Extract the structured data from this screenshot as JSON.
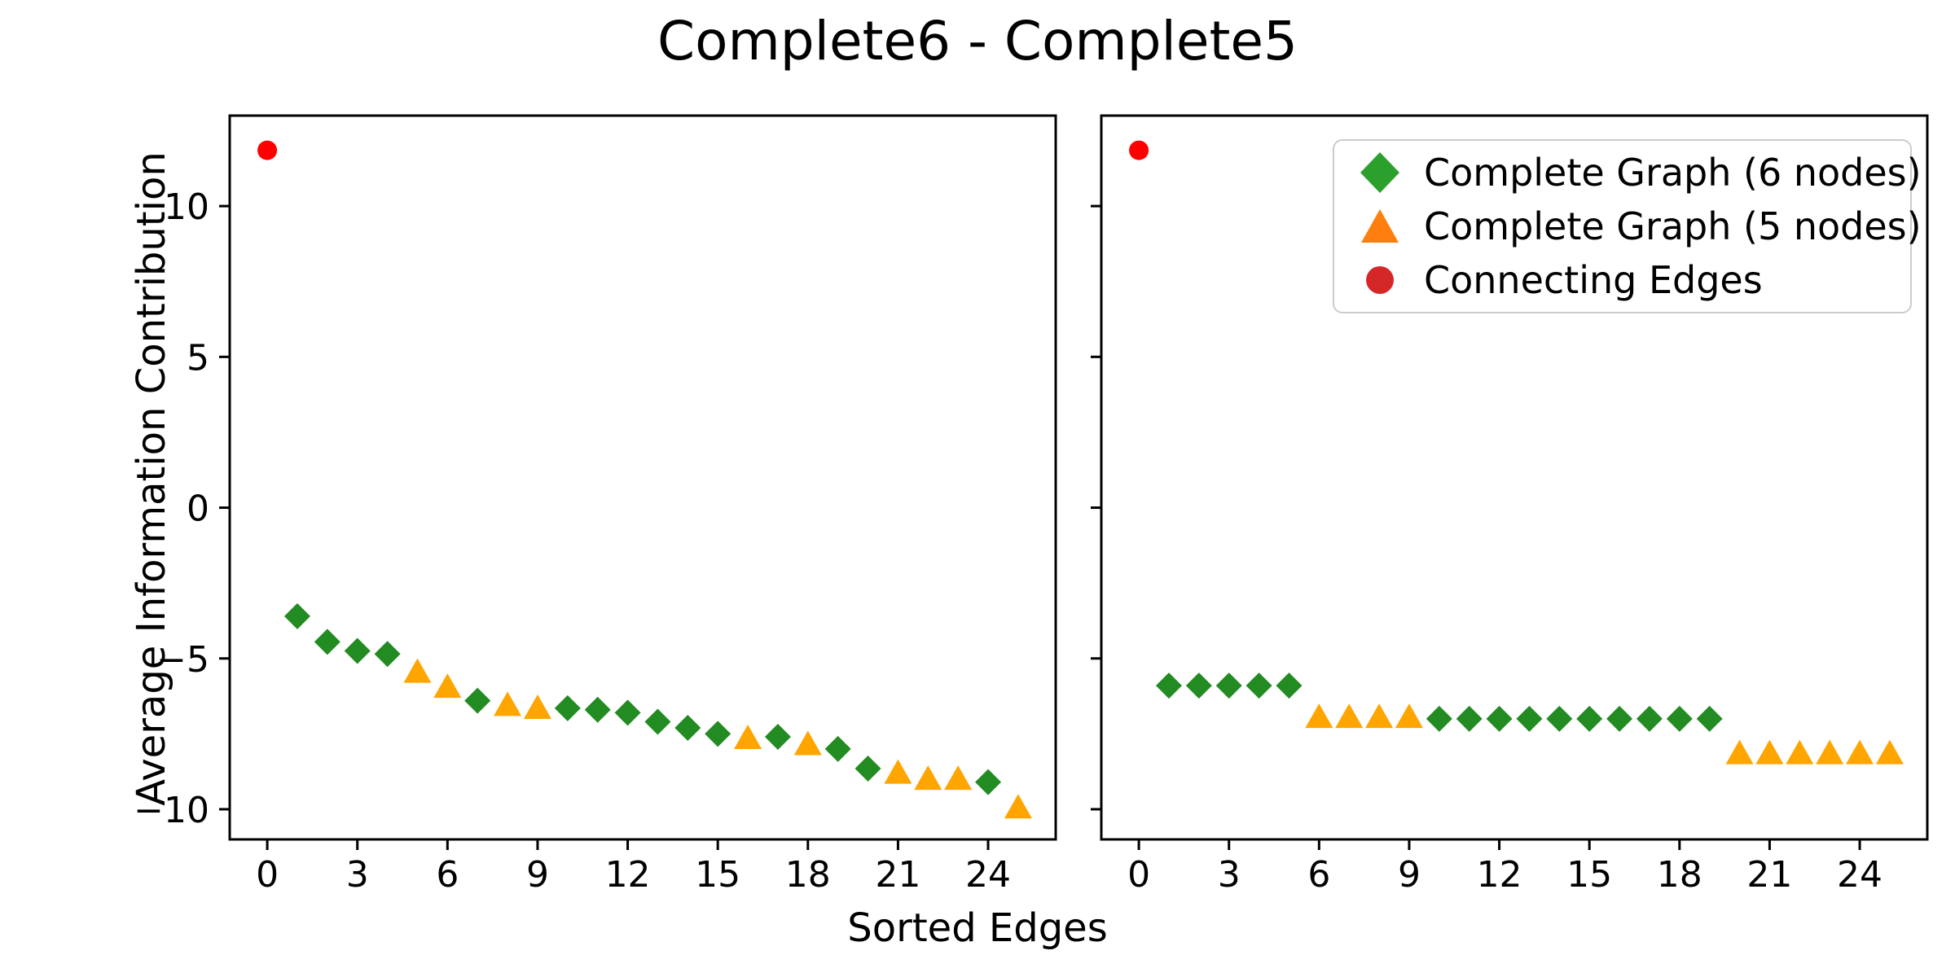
{
  "chart_data": {
    "type": "scatter",
    "title": "Complete6 - Complete5",
    "xlabel": "Sorted Edges",
    "ylabel": "Average Information Contribution",
    "xlim": [
      -1.25,
      26.25
    ],
    "ylim": [
      -11.0,
      13.0
    ],
    "xticks": [
      0,
      3,
      6,
      9,
      12,
      15,
      18,
      21,
      24
    ],
    "yticks": [
      -10,
      -5,
      0,
      5,
      10
    ],
    "ytick_labels": [
      "−10",
      "−5",
      "0",
      "5",
      "10"
    ],
    "grid": false,
    "legend_position": "upper right of right panel",
    "legend": [
      {
        "label": "Complete Graph (6 nodes)",
        "marker": "diamond",
        "color": "#2CA02C"
      },
      {
        "label": "Complete Graph (5 nodes)",
        "marker": "triangle",
        "color": "#FF7F0E"
      },
      {
        "label": "Connecting Edges",
        "marker": "circle",
        "color": "#D62728"
      }
    ],
    "colors": {
      "plot_diamond": "#228B22",
      "plot_triangle": "#FFA500",
      "plot_circle": "#FF0000",
      "spine": "#000000"
    },
    "panels": [
      {
        "name": "left",
        "points": [
          {
            "x": 0,
            "y": 11.85,
            "marker": "circle"
          },
          {
            "x": 1,
            "y": -3.6,
            "marker": "diamond"
          },
          {
            "x": 2,
            "y": -4.45,
            "marker": "diamond"
          },
          {
            "x": 3,
            "y": -4.75,
            "marker": "diamond"
          },
          {
            "x": 4,
            "y": -4.85,
            "marker": "diamond"
          },
          {
            "x": 5,
            "y": -5.4,
            "marker": "triangle"
          },
          {
            "x": 6,
            "y": -5.9,
            "marker": "triangle"
          },
          {
            "x": 7,
            "y": -6.4,
            "marker": "diamond"
          },
          {
            "x": 8,
            "y": -6.5,
            "marker": "triangle"
          },
          {
            "x": 9,
            "y": -6.6,
            "marker": "triangle"
          },
          {
            "x": 10,
            "y": -6.65,
            "marker": "diamond"
          },
          {
            "x": 11,
            "y": -6.7,
            "marker": "diamond"
          },
          {
            "x": 12,
            "y": -6.8,
            "marker": "diamond"
          },
          {
            "x": 13,
            "y": -7.1,
            "marker": "diamond"
          },
          {
            "x": 14,
            "y": -7.3,
            "marker": "diamond"
          },
          {
            "x": 15,
            "y": -7.5,
            "marker": "diamond"
          },
          {
            "x": 16,
            "y": -7.6,
            "marker": "triangle"
          },
          {
            "x": 17,
            "y": -7.6,
            "marker": "diamond"
          },
          {
            "x": 18,
            "y": -7.8,
            "marker": "triangle"
          },
          {
            "x": 19,
            "y": -8.0,
            "marker": "diamond"
          },
          {
            "x": 20,
            "y": -8.65,
            "marker": "diamond"
          },
          {
            "x": 21,
            "y": -8.75,
            "marker": "triangle"
          },
          {
            "x": 22,
            "y": -8.95,
            "marker": "triangle"
          },
          {
            "x": 23,
            "y": -8.95,
            "marker": "triangle"
          },
          {
            "x": 24,
            "y": -9.1,
            "marker": "diamond"
          },
          {
            "x": 25,
            "y": -9.9,
            "marker": "triangle"
          }
        ]
      },
      {
        "name": "right",
        "points": [
          {
            "x": 0,
            "y": 11.85,
            "marker": "circle"
          },
          {
            "x": 1,
            "y": -5.9,
            "marker": "diamond"
          },
          {
            "x": 2,
            "y": -5.9,
            "marker": "diamond"
          },
          {
            "x": 3,
            "y": -5.9,
            "marker": "diamond"
          },
          {
            "x": 4,
            "y": -5.9,
            "marker": "diamond"
          },
          {
            "x": 5,
            "y": -5.9,
            "marker": "diamond"
          },
          {
            "x": 6,
            "y": -6.9,
            "marker": "triangle"
          },
          {
            "x": 7,
            "y": -6.9,
            "marker": "triangle"
          },
          {
            "x": 8,
            "y": -6.9,
            "marker": "triangle"
          },
          {
            "x": 9,
            "y": -6.9,
            "marker": "triangle"
          },
          {
            "x": 10,
            "y": -7.0,
            "marker": "diamond"
          },
          {
            "x": 11,
            "y": -7.0,
            "marker": "diamond"
          },
          {
            "x": 12,
            "y": -7.0,
            "marker": "diamond"
          },
          {
            "x": 13,
            "y": -7.0,
            "marker": "diamond"
          },
          {
            "x": 14,
            "y": -7.0,
            "marker": "diamond"
          },
          {
            "x": 15,
            "y": -7.0,
            "marker": "diamond"
          },
          {
            "x": 16,
            "y": -7.0,
            "marker": "diamond"
          },
          {
            "x": 17,
            "y": -7.0,
            "marker": "diamond"
          },
          {
            "x": 18,
            "y": -7.0,
            "marker": "diamond"
          },
          {
            "x": 19,
            "y": -7.0,
            "marker": "diamond"
          },
          {
            "x": 20,
            "y": -8.1,
            "marker": "triangle"
          },
          {
            "x": 21,
            "y": -8.1,
            "marker": "triangle"
          },
          {
            "x": 22,
            "y": -8.1,
            "marker": "triangle"
          },
          {
            "x": 23,
            "y": -8.1,
            "marker": "triangle"
          },
          {
            "x": 24,
            "y": -8.1,
            "marker": "triangle"
          },
          {
            "x": 25,
            "y": -8.1,
            "marker": "triangle"
          }
        ]
      }
    ]
  }
}
